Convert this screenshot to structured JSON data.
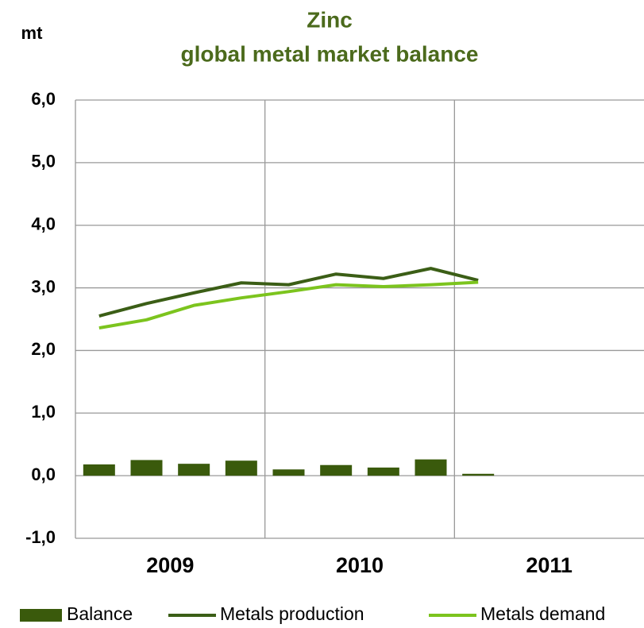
{
  "chart_data": {
    "type": "bar_line",
    "title": [
      "Zinc",
      "global metal market balance"
    ],
    "y_axis_label": "mt",
    "categories": [
      null,
      null,
      null,
      null,
      null,
      null,
      null,
      null,
      null,
      null,
      null,
      null
    ],
    "category_groups": [
      {
        "label": "2009",
        "span": 4
      },
      {
        "label": "2010",
        "span": 4
      },
      {
        "label": "2011",
        "span": 4
      }
    ],
    "series": [
      {
        "name": "Balance",
        "type": "bar",
        "color": "#3a5a0c",
        "values": [
          0.18,
          0.25,
          0.19,
          0.24,
          0.1,
          0.17,
          0.13,
          0.26,
          0.03,
          null,
          null,
          null
        ]
      },
      {
        "name": "Metals production",
        "type": "line",
        "color": "#3b5e16",
        "values": [
          2.55,
          2.75,
          2.92,
          3.08,
          3.05,
          3.22,
          3.15,
          3.31,
          3.12,
          null,
          null,
          null
        ]
      },
      {
        "name": "Metals demand",
        "type": "line",
        "color": "#7cc41e",
        "values": [
          2.36,
          2.49,
          2.72,
          2.84,
          2.94,
          3.05,
          3.02,
          3.05,
          3.09,
          null,
          null,
          null
        ]
      }
    ],
    "ylim": [
      -1,
      6
    ],
    "yticks": [
      {
        "value": -1,
        "label": "-1,0"
      },
      {
        "value": 0,
        "label": "0,0"
      },
      {
        "value": 1,
        "label": "1,0"
      },
      {
        "value": 2,
        "label": "2,0"
      },
      {
        "value": 3,
        "label": "3,0"
      },
      {
        "value": 4,
        "label": "4,0"
      },
      {
        "value": 5,
        "label": "5,0"
      },
      {
        "value": 6,
        "label": "6,0"
      }
    ],
    "grid": true,
    "legend": "bottom"
  }
}
